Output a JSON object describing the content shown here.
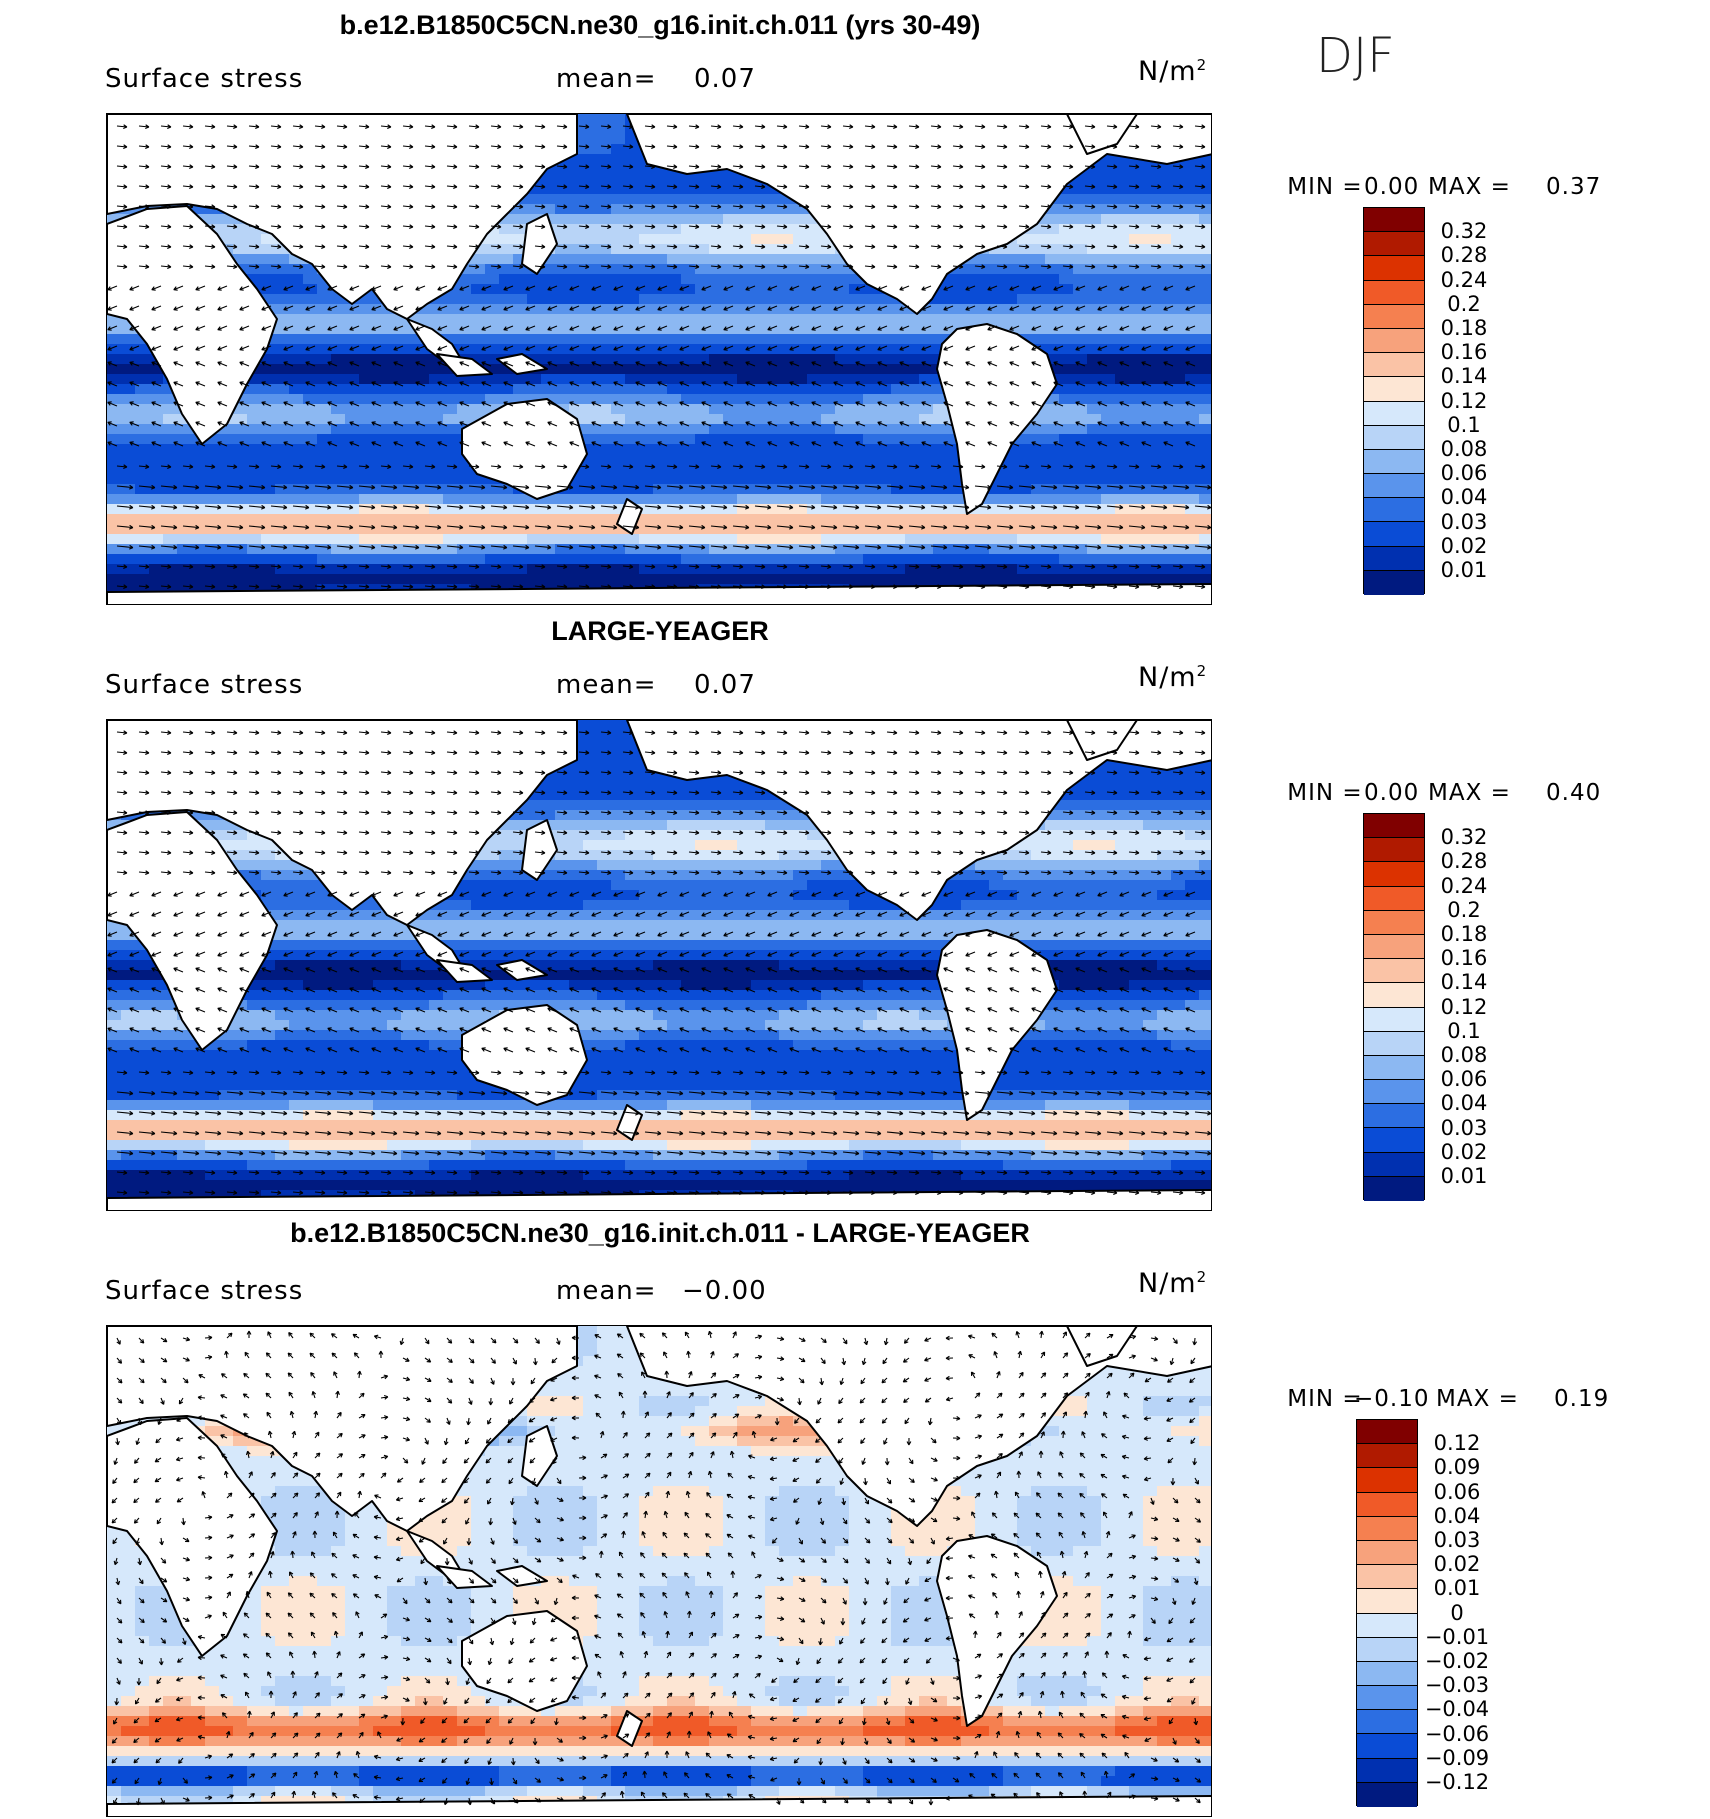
{
  "season": "DJF",
  "panels": [
    {
      "title": "b.e12.B1850C5CN.ne30_g16.init.ch.011 (yrs 30-49)",
      "variable": "Surface stress",
      "mean_label": "mean=",
      "mean_value": "0.07",
      "units_base": "N/m",
      "units_sup": "2",
      "min_label": "MIN =",
      "min_value": "0.00",
      "max_label": "MAX =",
      "max_value": "0.37",
      "colorbar": {
        "labels": [
          "0.32",
          "0.28",
          "0.24",
          "0.2",
          "0.18",
          "0.16",
          "0.14",
          "0.12",
          "0.1",
          "0.08",
          "0.06",
          "0.04",
          "0.03",
          "0.02",
          "0.01"
        ],
        "colors": [
          "#800000",
          "#b01a00",
          "#dc3200",
          "#f05a28",
          "#f58050",
          "#f7a27c",
          "#fac3a6",
          "#fde6d4",
          "#d6e8fb",
          "#b8d4f7",
          "#8cb8f2",
          "#5a94ec",
          "#2c6ee2",
          "#0a4cd6",
          "#0030b0",
          "#001a80"
        ]
      }
    },
    {
      "title": "LARGE-YEAGER",
      "variable": "Surface stress",
      "mean_label": "mean=",
      "mean_value": "0.07",
      "units_base": "N/m",
      "units_sup": "2",
      "min_label": "MIN =",
      "min_value": "0.00",
      "max_label": "MAX =",
      "max_value": "0.40",
      "colorbar": {
        "labels": [
          "0.32",
          "0.28",
          "0.24",
          "0.2",
          "0.18",
          "0.16",
          "0.14",
          "0.12",
          "0.1",
          "0.08",
          "0.06",
          "0.04",
          "0.03",
          "0.02",
          "0.01"
        ],
        "colors": [
          "#800000",
          "#b01a00",
          "#dc3200",
          "#f05a28",
          "#f58050",
          "#f7a27c",
          "#fac3a6",
          "#fde6d4",
          "#d6e8fb",
          "#b8d4f7",
          "#8cb8f2",
          "#5a94ec",
          "#2c6ee2",
          "#0a4cd6",
          "#0030b0",
          "#001a80"
        ]
      }
    },
    {
      "title": "b.e12.B1850C5CN.ne30_g16.init.ch.011 - LARGE-YEAGER",
      "variable": "Surface stress",
      "mean_label": "mean=",
      "mean_value": "−0.00",
      "units_base": "N/m",
      "units_sup": "2",
      "min_label": "MIN =",
      "min_value": "−0.10",
      "max_label": "MAX =",
      "max_value": "0.19",
      "colorbar": {
        "labels": [
          "0.12",
          "0.09",
          "0.06",
          "0.04",
          "0.03",
          "0.02",
          "0.01",
          "0",
          "−0.01",
          "−0.02",
          "−0.03",
          "−0.04",
          "−0.06",
          "−0.09",
          "−0.12"
        ],
        "colors": [
          "#800000",
          "#b01a00",
          "#dc3200",
          "#f05a28",
          "#f58050",
          "#f7a27c",
          "#fac3a6",
          "#fde6d4",
          "#d6e8fb",
          "#b8d4f7",
          "#8cb8f2",
          "#5a94ec",
          "#2c6ee2",
          "#0a4cd6",
          "#0030b0",
          "#001a80"
        ]
      }
    }
  ]
}
